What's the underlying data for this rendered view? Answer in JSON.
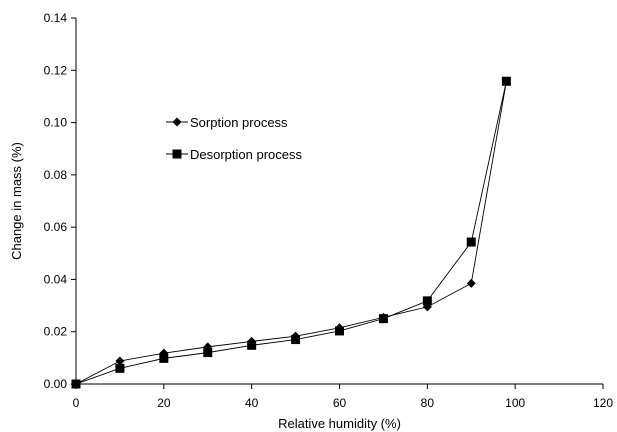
{
  "chart_data": {
    "type": "line",
    "title": "",
    "xlabel": "Relative humidity (%)",
    "ylabel": "Change in mass (%)",
    "xlim": [
      0,
      120
    ],
    "ylim": [
      0,
      0.14
    ],
    "x_ticks": [
      0,
      20,
      40,
      60,
      80,
      100,
      120
    ],
    "y_ticks": [
      0.0,
      0.02,
      0.04,
      0.06,
      0.08,
      0.1,
      0.12,
      0.14
    ],
    "x_tick_labels": [
      "0",
      "20",
      "40",
      "60",
      "80",
      "100",
      "120"
    ],
    "y_tick_labels": [
      "0.00",
      "0.02",
      "0.04",
      "0.06",
      "0.08",
      "0.10",
      "0.12",
      "0.14"
    ],
    "grid": false,
    "legend_position": "upper-left inside",
    "series": [
      {
        "name": "Sorption process",
        "marker": "diamond",
        "color": "#000000",
        "x": [
          0,
          10,
          20,
          30,
          40,
          50,
          60,
          70,
          80,
          90,
          98
        ],
        "y": [
          0.0,
          0.0088,
          0.0118,
          0.0142,
          0.0163,
          0.0183,
          0.0215,
          0.0255,
          0.0295,
          0.0385,
          0.1158
        ]
      },
      {
        "name": "Desorption process",
        "marker": "square",
        "color": "#000000",
        "x": [
          0,
          10,
          20,
          30,
          40,
          50,
          60,
          70,
          80,
          90,
          98
        ],
        "y": [
          0.0,
          0.006,
          0.0098,
          0.012,
          0.0148,
          0.017,
          0.0203,
          0.025,
          0.0318,
          0.0543,
          0.1158
        ]
      }
    ]
  }
}
